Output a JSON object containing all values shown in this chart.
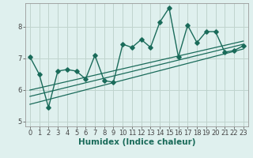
{
  "title": "",
  "xlabel": "Humidex (Indice chaleur)",
  "ylabel": "",
  "bg_color": "#dff0ee",
  "grid_color": "#c0d4ce",
  "line_color": "#1a6b5a",
  "xlim": [
    -0.5,
    23.5
  ],
  "ylim": [
    4.85,
    8.75
  ],
  "yticks": [
    5,
    6,
    7,
    8
  ],
  "xticks": [
    0,
    1,
    2,
    3,
    4,
    5,
    6,
    7,
    8,
    9,
    10,
    11,
    12,
    13,
    14,
    15,
    16,
    17,
    18,
    19,
    20,
    21,
    22,
    23
  ],
  "data_x": [
    0,
    1,
    2,
    3,
    4,
    5,
    6,
    7,
    8,
    9,
    10,
    11,
    12,
    13,
    14,
    15,
    16,
    17,
    18,
    19,
    20,
    21,
    22,
    23
  ],
  "data_y": [
    7.05,
    6.5,
    5.45,
    6.6,
    6.65,
    6.6,
    6.35,
    7.1,
    6.3,
    6.25,
    7.45,
    7.35,
    7.6,
    7.35,
    8.15,
    8.6,
    7.05,
    8.05,
    7.5,
    7.85,
    7.85,
    7.2,
    7.25,
    7.4
  ],
  "trend1_x": [
    0,
    23
  ],
  "trend1_y": [
    6.0,
    7.55
  ],
  "trend2_x": [
    0,
    23
  ],
  "trend2_y": [
    5.8,
    7.45
  ],
  "trend3_x": [
    0,
    23
  ],
  "trend3_y": [
    5.55,
    7.3
  ],
  "marker": "D",
  "markersize": 2.8,
  "linewidth": 1.0,
  "tick_fontsize": 6.0,
  "label_fontsize": 7.5
}
